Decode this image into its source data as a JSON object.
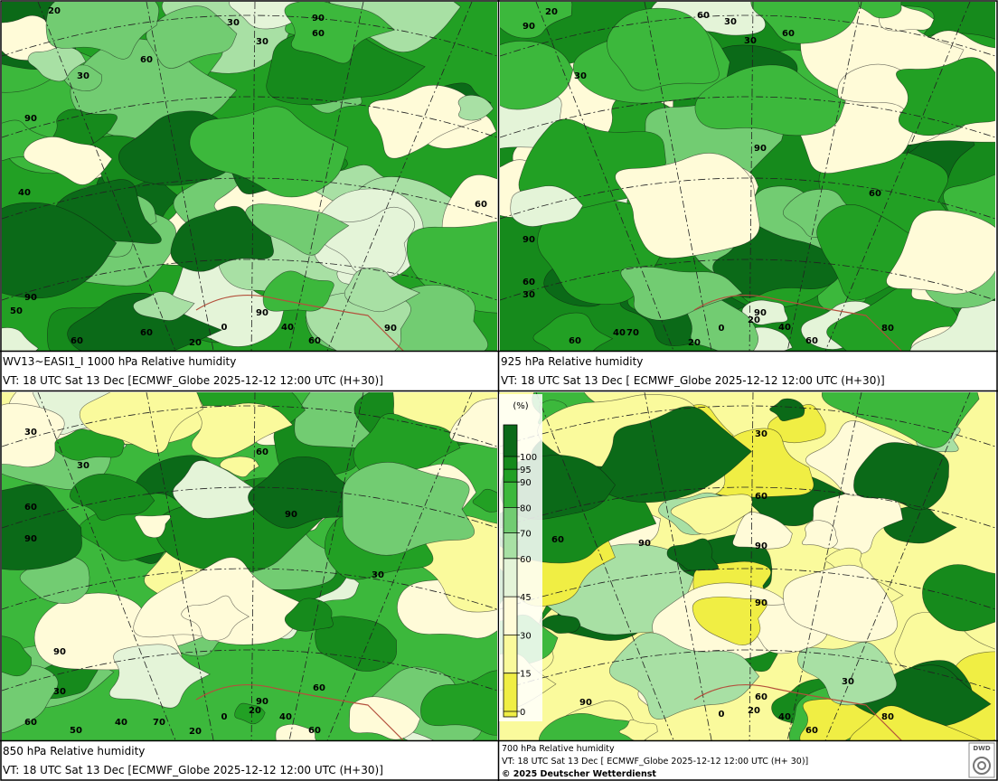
{
  "panels": [
    {
      "title": "WV13~EASI1_I 1000 hPa Relative humidity",
      "valid": "VT: 18 UTC Sat  13 Dec [ECMWF_Globe 2025-12-12 12:00 UTC  (H+30)]",
      "contour_labels": [
        "20",
        "30",
        "30",
        "60",
        "90",
        "60",
        "30",
        "90",
        "40",
        "60",
        "90",
        "50",
        "60",
        "60",
        "90",
        "40",
        "0",
        "20",
        "60",
        "90"
      ]
    },
    {
      "title": "925 hPa Relative humidity",
      "valid": "VT: 18 UTC Sat  13 Dec [ ECMWF_Globe 2025-12-12 12:00 UTC (H+30)]",
      "contour_labels": [
        "20",
        "60",
        "30",
        "30",
        "60",
        "90",
        "30",
        "90",
        "60",
        "90",
        "60",
        "30",
        "90",
        "40",
        "20",
        "0",
        "70",
        "40",
        "60",
        "20",
        "60",
        "80"
      ]
    },
    {
      "title": "850 hPa  Relative humidity",
      "valid": "VT: 18 UTC Sat  13 Dec [ECMWF_Globe 2025-12-12 12:00 UTC  (H+30)]",
      "contour_labels": [
        "30",
        "60",
        "30",
        "60",
        "90",
        "90",
        "30",
        "90",
        "30",
        "60",
        "90",
        "60",
        "40",
        "20",
        "0",
        "70",
        "40",
        "20",
        "60",
        "50"
      ]
    },
    {
      "title": "700 hPa Relative humidity",
      "valid": "VT: 18 UTC Sat  13 Dec [ ECMWF_Globe 2025-12-12 12:00 UTC  (H+ 30)]",
      "copyright": "© 2025 Deutscher Wetterdienst",
      "contour_labels": [
        "30",
        "60",
        "60",
        "90",
        "90",
        "90",
        "30",
        "60",
        "90",
        "0",
        "20",
        "40",
        "60",
        "80"
      ]
    }
  ],
  "legend": {
    "unit": "(%)",
    "top_color": "#0b6a18",
    "levels": [
      {
        "value": 100,
        "color": "#168a1c"
      },
      {
        "value": 95,
        "color": "#22a024"
      },
      {
        "value": 90,
        "color": "#3cb83c"
      },
      {
        "value": 80,
        "color": "#72cc72"
      },
      {
        "value": 70,
        "color": "#a8e0a4"
      },
      {
        "value": 60,
        "color": "#e4f4d8"
      },
      {
        "value": 45,
        "color": "#fffbd8"
      },
      {
        "value": 30,
        "color": "#fafa9c"
      },
      {
        "value": 15,
        "color": "#f0ee44"
      },
      {
        "value": 0,
        "color": "#f0ee44"
      }
    ]
  },
  "logo": "DWD"
}
